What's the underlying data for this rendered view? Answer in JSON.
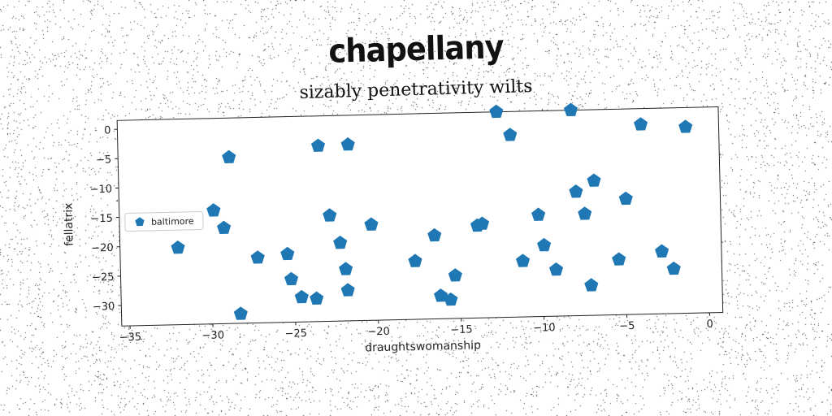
{
  "title": "chapellany",
  "chart_data": {
    "type": "scatter",
    "title": "sizably penetrativity wilts",
    "xlabel": "draughtswomanship",
    "ylabel": "fellatrix",
    "xlim": [
      -35.5,
      0.8
    ],
    "ylim": [
      -33.5,
      1.5
    ],
    "xticks": [
      -35,
      -30,
      -25,
      -20,
      -15,
      -10,
      -5,
      0
    ],
    "yticks": [
      0,
      -5,
      -10,
      -15,
      -20,
      -25,
      -30
    ],
    "grid": false,
    "legend_position": "center-left",
    "marker": "pentagon",
    "color": "#1f77b4",
    "series": [
      {
        "name": "baltimore",
        "points": [
          [
            -12.6,
            1.5
          ],
          [
            -8.1,
            1.5
          ],
          [
            -3.9,
            -1.2
          ],
          [
            -1.2,
            -1.8
          ],
          [
            -11.8,
            -2.5
          ],
          [
            -21.6,
            -3.5
          ],
          [
            -23.4,
            -3.6
          ],
          [
            -28.8,
            -5.2
          ],
          [
            -6.8,
            -10.6
          ],
          [
            -7.9,
            -12.4
          ],
          [
            -4.9,
            -13.8
          ],
          [
            -29.8,
            -14.2
          ],
          [
            -22.8,
            -15.5
          ],
          [
            -10.2,
            -16.2
          ],
          [
            -7.4,
            -16.2
          ],
          [
            -20.3,
            -17.2
          ],
          [
            -29.2,
            -17.2
          ],
          [
            -13.6,
            -17.5
          ],
          [
            -13.9,
            -17.8
          ],
          [
            -16.5,
            -19.3
          ],
          [
            -22.2,
            -20.2
          ],
          [
            -32.0,
            -20.4
          ],
          [
            -9.9,
            -21.4
          ],
          [
            -25.4,
            -21.9
          ],
          [
            -27.2,
            -22.4
          ],
          [
            -17.7,
            -23.6
          ],
          [
            -11.2,
            -24.0
          ],
          [
            -5.4,
            -24.1
          ],
          [
            -2.8,
            -22.9
          ],
          [
            -21.9,
            -24.7
          ],
          [
            -9.2,
            -25.6
          ],
          [
            -2.1,
            -25.9
          ],
          [
            -15.3,
            -26.2
          ],
          [
            -25.2,
            -26.2
          ],
          [
            -21.8,
            -28.3
          ],
          [
            -7.1,
            -28.4
          ],
          [
            -24.6,
            -29.3
          ],
          [
            -23.7,
            -29.6
          ],
          [
            -16.2,
            -29.6
          ],
          [
            -15.6,
            -30.3
          ],
          [
            -28.3,
            -31.9
          ]
        ]
      }
    ]
  }
}
